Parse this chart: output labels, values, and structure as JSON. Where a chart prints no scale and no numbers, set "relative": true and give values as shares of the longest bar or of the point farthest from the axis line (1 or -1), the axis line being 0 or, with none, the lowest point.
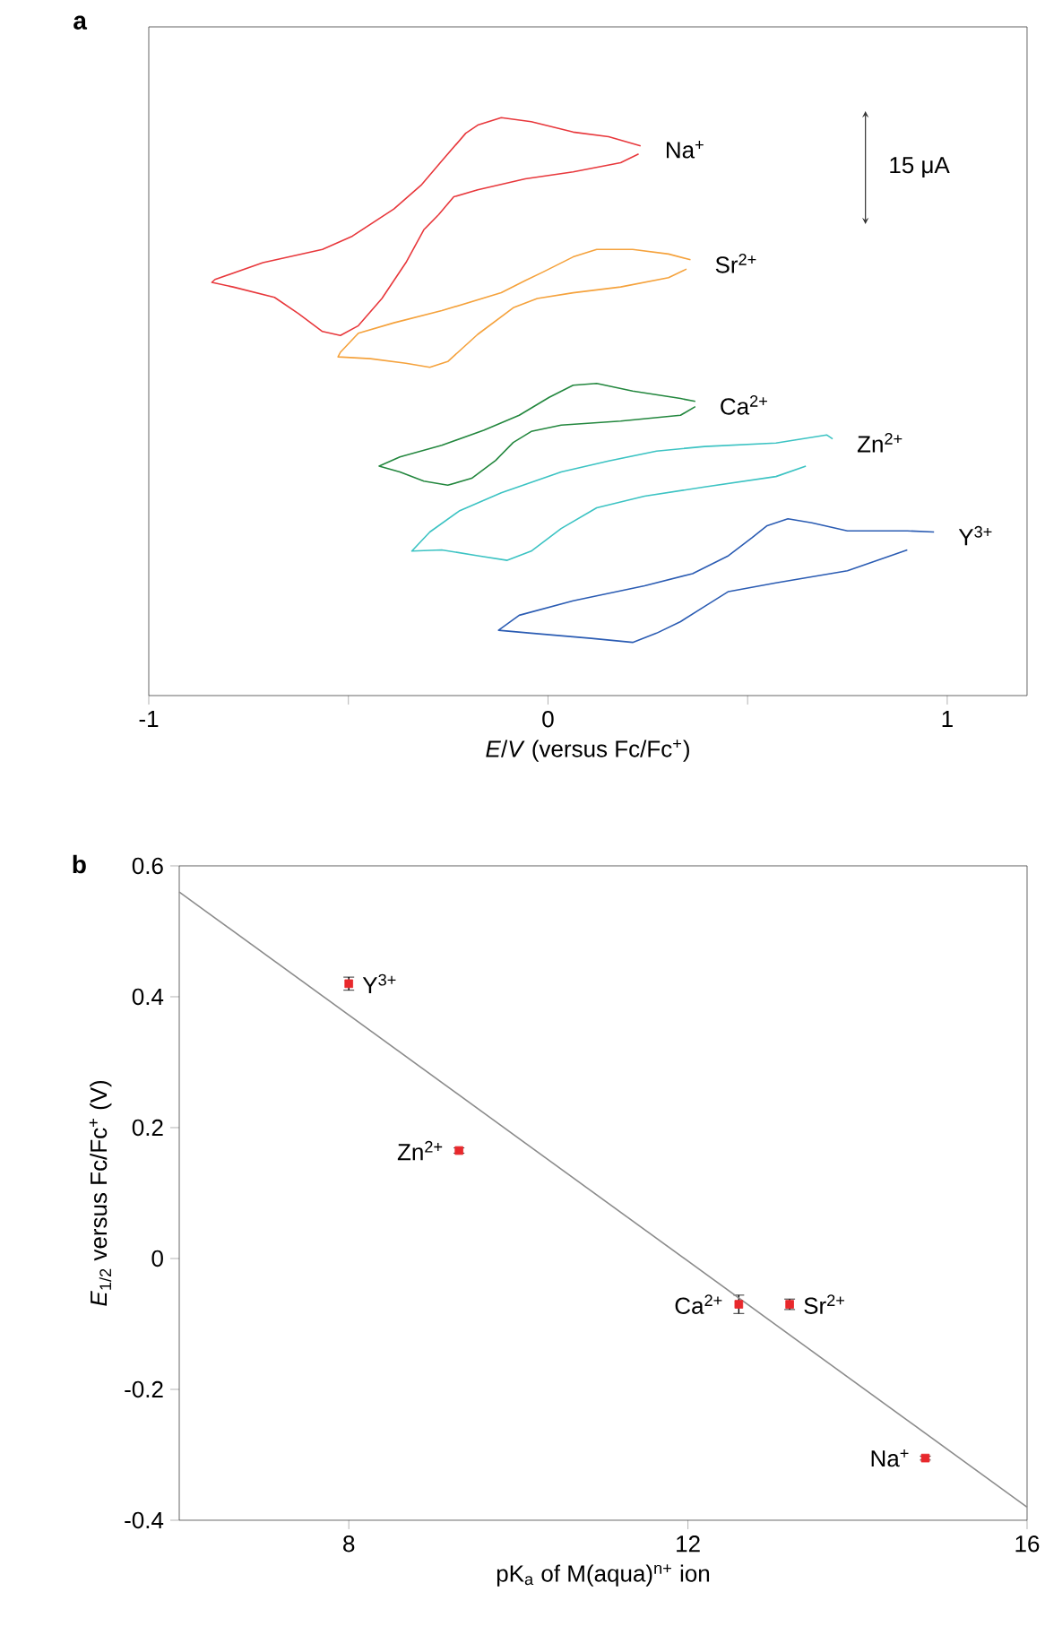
{
  "chart_data": [
    {
      "type": "line",
      "title": "a",
      "xlabel": "*E*/*V* (versus Fc/Fc$^{+}$)",
      "relative": true,
      "tick_labels": "x",
      "xlim": [
        -1,
        1.2
      ],
      "xticks": [
        -1,
        {
          "value": -0.5,
          "label": null
        },
        0,
        {
          "value": 0.5,
          "label": null
        },
        1
      ],
      "annotations": [
        "15 μA"
      ],
      "series": [
        {
          "name": "Na$^{+}$",
          "color": "#e8383c",
          "x": [
            0.232,
            0.152,
            0.063,
            -0.042,
            -0.117,
            -0.176,
            -0.206,
            -0.266,
            -0.318,
            -0.386,
            -0.49,
            -0.565,
            -0.714,
            -0.834,
            -0.842,
            -0.789,
            -0.685,
            -0.625,
            -0.565,
            -0.52,
            -0.475,
            -0.416,
            -0.356,
            -0.311,
            -0.274,
            -0.236,
            -0.176,
            -0.057,
            0.063,
            0.182,
            0.227
          ],
          "values": [
            0.951,
            0.967,
            0.975,
            0.993,
            1.0,
            0.987,
            0.973,
            0.925,
            0.883,
            0.842,
            0.795,
            0.772,
            0.749,
            0.72,
            0.715,
            0.707,
            0.689,
            0.661,
            0.63,
            0.623,
            0.64,
            0.687,
            0.749,
            0.806,
            0.832,
            0.863,
            0.875,
            0.894,
            0.906,
            0.922,
            0.937
          ]
        },
        {
          "name": "Sr$^{2+}$",
          "color": "#f5a23c",
          "x": [
            0.357,
            0.302,
            0.212,
            0.122,
            0.063,
            -0.012,
            -0.057,
            -0.117,
            -0.266,
            -0.386,
            -0.475,
            -0.52,
            -0.526,
            -0.445,
            -0.356,
            -0.296,
            -0.251,
            -0.176,
            -0.087,
            -0.027,
            0.063,
            0.182,
            0.302,
            0.347
          ],
          "values": [
            0.754,
            0.764,
            0.772,
            0.772,
            0.759,
            0.733,
            0.718,
            0.697,
            0.666,
            0.645,
            0.627,
            0.594,
            0.586,
            0.583,
            0.575,
            0.568,
            0.578,
            0.625,
            0.671,
            0.687,
            0.697,
            0.707,
            0.723,
            0.738
          ]
        },
        {
          "name": "Ca$^{2+}$",
          "color": "#23873e",
          "x": [
            0.369,
            0.332,
            0.212,
            0.122,
            0.063,
            0.003,
            -0.072,
            -0.161,
            -0.266,
            -0.371,
            -0.423,
            -0.371,
            -0.311,
            -0.251,
            -0.191,
            -0.131,
            -0.087,
            -0.042,
            0.033,
            0.182,
            0.332,
            0.369
          ],
          "values": [
            0.509,
            0.514,
            0.527,
            0.54,
            0.537,
            0.516,
            0.485,
            0.459,
            0.433,
            0.413,
            0.397,
            0.387,
            0.371,
            0.364,
            0.376,
            0.407,
            0.438,
            0.457,
            0.468,
            0.475,
            0.485,
            0.5
          ]
        },
        {
          "name": "Zn$^{2+}$",
          "color": "#3cc3c3",
          "x": [
            0.713,
            0.698,
            0.571,
            0.392,
            0.272,
            0.152,
            0.033,
            -0.117,
            -0.221,
            -0.296,
            -0.341,
            -0.266,
            -0.176,
            -0.102,
            -0.042,
            0.033,
            0.122,
            0.242,
            0.392,
            0.571,
            0.646
          ],
          "values": [
            0.444,
            0.451,
            0.437,
            0.431,
            0.423,
            0.406,
            0.387,
            0.351,
            0.32,
            0.283,
            0.25,
            0.252,
            0.242,
            0.234,
            0.25,
            0.289,
            0.325,
            0.345,
            0.361,
            0.379,
            0.397
          ]
        },
        {
          "name": "Y$^{3+}$",
          "color": "#2b5cb3",
          "x": [
            0.967,
            0.9,
            0.75,
            0.661,
            0.601,
            0.549,
            0.511,
            0.452,
            0.362,
            0.242,
            0.063,
            -0.072,
            -0.124,
            -0.042,
            0.108,
            0.212,
            0.272,
            0.332,
            0.392,
            0.452,
            0.571,
            0.75,
            0.9
          ],
          "values": [
            0.283,
            0.285,
            0.285,
            0.299,
            0.306,
            0.294,
            0.273,
            0.242,
            0.211,
            0.19,
            0.164,
            0.139,
            0.113,
            0.108,
            0.099,
            0.092,
            0.108,
            0.128,
            0.154,
            0.18,
            0.195,
            0.216,
            0.252
          ]
        }
      ]
    },
    {
      "type": "scatter",
      "title": "b",
      "xlabel": "pK$_{a}$ of M(aqua)$^{n+}$ ion",
      "ylabel": "*E*$_{1/2}$ versus Fc/Fc$^{+}$ (V)",
      "xlim": [
        6,
        16
      ],
      "ylim": [
        -0.4,
        0.6
      ],
      "xticks": [
        8,
        12,
        16
      ],
      "yticks": [
        -0.4,
        -0.2,
        0,
        0.2,
        0.4,
        0.6
      ],
      "annotations": [
        {
          "text": "Y$^{3+}$",
          "x": 8.0,
          "y": 0.42
        },
        {
          "text": "Zn$^{2+}$",
          "x": 9.3,
          "y": 0.165
        },
        {
          "text": "Ca$^{2+}$",
          "x": 12.6,
          "y": -0.07
        },
        {
          "text": "Sr$^{2+}$",
          "x": 13.2,
          "y": -0.07
        },
        {
          "text": "Na$^{+}$",
          "x": 14.8,
          "y": -0.305
        }
      ],
      "series": [
        {
          "type": "scatter",
          "marker": "square",
          "color": "#e8282c",
          "x": [
            8.0,
            9.3,
            12.6,
            13.2,
            14.8
          ],
          "values": [
            0.42,
            0.165,
            -0.07,
            -0.07,
            -0.305
          ],
          "errors": [
            0.01,
            0.004,
            0.014,
            0.008,
            0.003
          ]
        },
        {
          "type": "line",
          "color": "#8c8c8c",
          "x": [
            6,
            16
          ],
          "values": [
            0.56,
            -0.38
          ]
        }
      ]
    }
  ]
}
